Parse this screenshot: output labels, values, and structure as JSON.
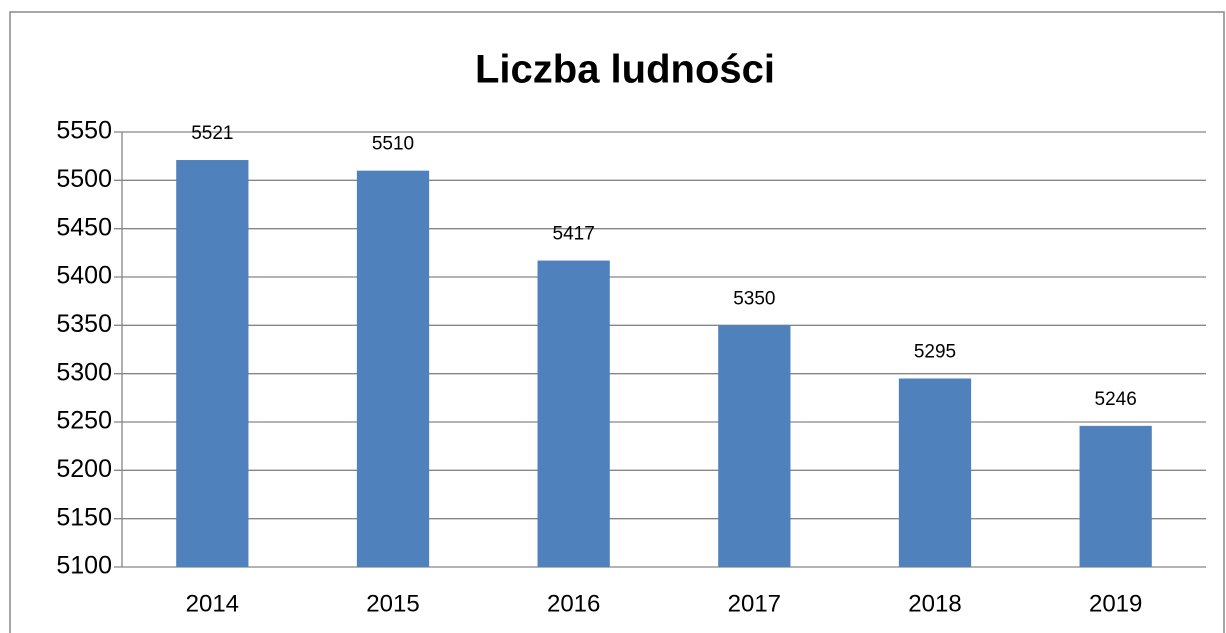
{
  "chart_data": {
    "type": "bar",
    "title": "Liczba ludności",
    "categories": [
      "2014",
      "2015",
      "2016",
      "2017",
      "2018",
      "2019"
    ],
    "values": [
      5521,
      5510,
      5417,
      5350,
      5295,
      5246
    ],
    "color": "#4f81bd",
    "ylim": [
      5100,
      5550
    ],
    "yticks": [
      5100,
      5150,
      5200,
      5250,
      5300,
      5350,
      5400,
      5450,
      5500,
      5550
    ],
    "grid": true
  }
}
